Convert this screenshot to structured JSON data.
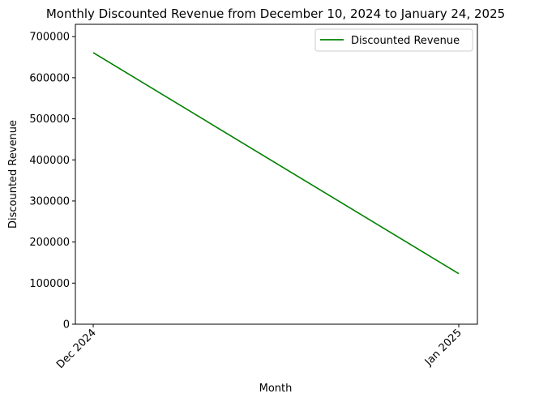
{
  "chart_data": {
    "type": "line",
    "title": "Monthly Discounted Revenue from December 10, 2024 to January 24, 2025",
    "xlabel": "Month",
    "ylabel": "Discounted Revenue",
    "categories": [
      "Dec 2024",
      "Jan 2025"
    ],
    "series": [
      {
        "name": "Discounted Revenue",
        "color": "#008000",
        "values": [
          661000,
          123000
        ]
      }
    ],
    "ylim": [
      0,
      730000
    ],
    "yticks": [
      0,
      100000,
      200000,
      300000,
      400000,
      500000,
      600000,
      700000
    ],
    "ytick_labels": [
      "0",
      "100000",
      "200000",
      "300000",
      "400000",
      "500000",
      "600000",
      "700000"
    ],
    "grid": false,
    "legend_position": "top-right"
  }
}
